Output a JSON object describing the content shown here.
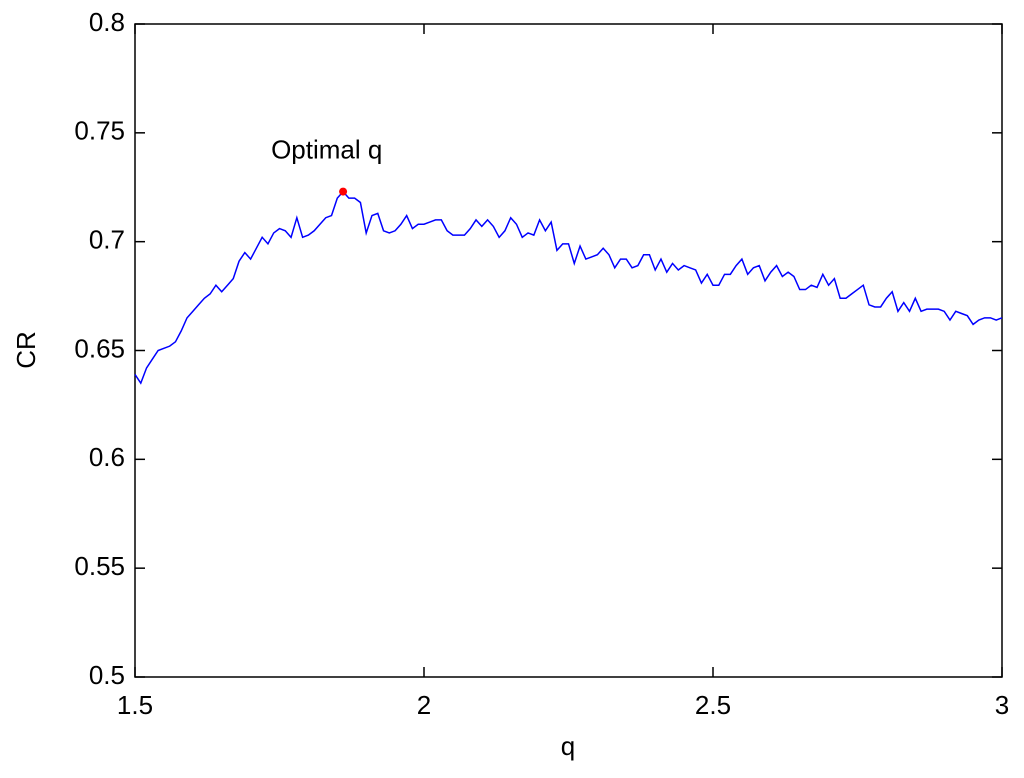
{
  "chart_data": {
    "type": "line",
    "xlabel": "q",
    "ylabel": "CR",
    "x": [
      1.5,
      1.51,
      1.52,
      1.53,
      1.54,
      1.55,
      1.56,
      1.57,
      1.58,
      1.59,
      1.6,
      1.61,
      1.62,
      1.63,
      1.64,
      1.65,
      1.66,
      1.67,
      1.68,
      1.69,
      1.7,
      1.71,
      1.72,
      1.73,
      1.74,
      1.75,
      1.76,
      1.77,
      1.78,
      1.79,
      1.8,
      1.81,
      1.82,
      1.83,
      1.84,
      1.85,
      1.86,
      1.87,
      1.88,
      1.89,
      1.9,
      1.91,
      1.92,
      1.93,
      1.94,
      1.95,
      1.96,
      1.97,
      1.98,
      1.99,
      2,
      2.01,
      2.02,
      2.03,
      2.04,
      2.05,
      2.06,
      2.07,
      2.08,
      2.09,
      2.1,
      2.11,
      2.12,
      2.13,
      2.14,
      2.15,
      2.16,
      2.17,
      2.18,
      2.19,
      2.2,
      2.21,
      2.22,
      2.23,
      2.24,
      2.25,
      2.26,
      2.27,
      2.28,
      2.29,
      2.3,
      2.31,
      2.32,
      2.33,
      2.34,
      2.35,
      2.36,
      2.37,
      2.38,
      2.39,
      2.4,
      2.41,
      2.42,
      2.43,
      2.44,
      2.45,
      2.46,
      2.47,
      2.48,
      2.49,
      2.5,
      2.51,
      2.52,
      2.53,
      2.54,
      2.55,
      2.56,
      2.57,
      2.58,
      2.59,
      2.6,
      2.61,
      2.62,
      2.63,
      2.64,
      2.65,
      2.66,
      2.67,
      2.68,
      2.69,
      2.7,
      2.71,
      2.72,
      2.73,
      2.74,
      2.75,
      2.76,
      2.77,
      2.78,
      2.79,
      2.8,
      2.81,
      2.82,
      2.83,
      2.84,
      2.85,
      2.86,
      2.87,
      2.88,
      2.89,
      2.9,
      2.91,
      2.92,
      2.93,
      2.94,
      2.95,
      2.96,
      2.97,
      2.98,
      2.99,
      3
    ],
    "series": [
      {
        "color": "#0000ff",
        "values": [
          0.639,
          0.635,
          0.642,
          0.646,
          0.65,
          0.651,
          0.652,
          0.654,
          0.659,
          0.665,
          0.668,
          0.671,
          0.674,
          0.676,
          0.68,
          0.677,
          0.68,
          0.683,
          0.691,
          0.695,
          0.692,
          0.697,
          0.702,
          0.699,
          0.704,
          0.706,
          0.705,
          0.702,
          0.711,
          0.702,
          0.703,
          0.705,
          0.708,
          0.711,
          0.712,
          0.72,
          0.723,
          0.72,
          0.72,
          0.718,
          0.704,
          0.712,
          0.713,
          0.705,
          0.704,
          0.705,
          0.708,
          0.712,
          0.706,
          0.708,
          0.708,
          0.709,
          0.71,
          0.71,
          0.705,
          0.703,
          0.703,
          0.703,
          0.706,
          0.71,
          0.707,
          0.71,
          0.707,
          0.702,
          0.705,
          0.711,
          0.708,
          0.702,
          0.704,
          0.703,
          0.71,
          0.705,
          0.709,
          0.696,
          0.699,
          0.699,
          0.69,
          0.698,
          0.692,
          0.693,
          0.694,
          0.697,
          0.694,
          0.688,
          0.692,
          0.692,
          0.688,
          0.689,
          0.694,
          0.694,
          0.687,
          0.692,
          0.686,
          0.69,
          0.687,
          0.689,
          0.688,
          0.687,
          0.681,
          0.685,
          0.68,
          0.68,
          0.685,
          0.685,
          0.689,
          0.692,
          0.685,
          0.688,
          0.689,
          0.682,
          0.686,
          0.689,
          0.684,
          0.686,
          0.684,
          0.678,
          0.678,
          0.68,
          0.679,
          0.685,
          0.68,
          0.683,
          0.674,
          0.674,
          0.676,
          0.678,
          0.68,
          0.671,
          0.67,
          0.67,
          0.674,
          0.677,
          0.668,
          0.672,
          0.668,
          0.674,
          0.668,
          0.669,
          0.669,
          0.669,
          0.668,
          0.664,
          0.668,
          0.667,
          0.666,
          0.662,
          0.664,
          0.665,
          0.665,
          0.664,
          0.665
        ]
      }
    ],
    "highlight": {
      "label": "Optimal q",
      "x": 1.86,
      "y": 0.723,
      "color": "#ff0000"
    },
    "xlim": [
      1.5,
      3
    ],
    "xticks": [
      1.5,
      2,
      2.5,
      3
    ],
    "ylim": [
      0.5,
      0.8
    ],
    "yticks": [
      0.5,
      0.55,
      0.6,
      0.65,
      0.7,
      0.75,
      0.8
    ],
    "grid": false
  }
}
